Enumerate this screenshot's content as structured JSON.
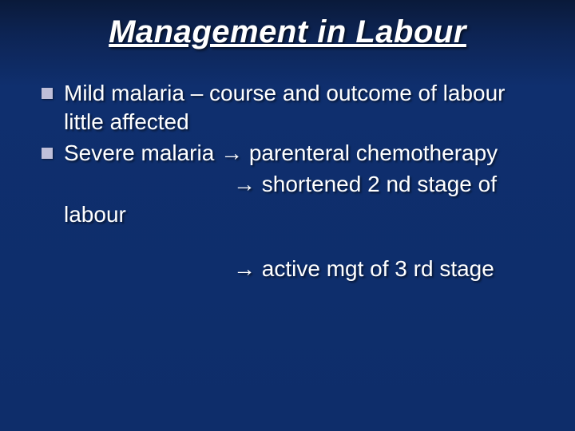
{
  "slide": {
    "title": "Management in Labour",
    "title_fontsize": 40,
    "title_style": "italic underline",
    "background_gradient": [
      "#0a1a3a",
      "#0d2454",
      "#0f2f6e",
      "#0e2d6a"
    ],
    "text_color": "#ffffff",
    "bullet_color": "#bfbfd9",
    "body_fontsize": 28,
    "bullets": [
      {
        "text": "Mild malaria – course and outcome of labour little affected",
        "continuation": []
      },
      {
        "text": "Severe malaria → parenteral chemotherapy",
        "continuation": [
          "→ shortened 2 nd stage of",
          "labour"
        ]
      }
    ],
    "standalone_line": "→ active mgt of 3 rd stage"
  }
}
